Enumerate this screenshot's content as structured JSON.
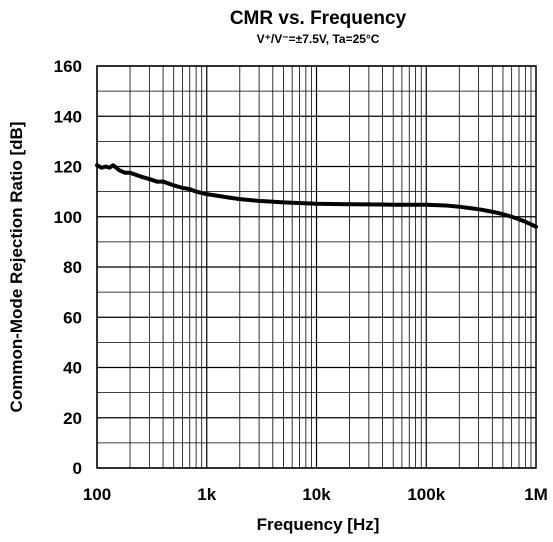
{
  "chart_data": {
    "type": "line",
    "title": "CMR vs. Frequency",
    "subtitle": "V⁺/V⁻=±7.5V, Ta=25°C",
    "xlabel": "Frequency [Hz]",
    "ylabel": "Common-Mode Rejection Ratio [dB]",
    "xscale": "log",
    "xlim": [
      100,
      1000000
    ],
    "ylim": [
      0,
      160
    ],
    "x_ticks": [
      100,
      1000,
      10000,
      100000,
      1000000
    ],
    "x_tick_labels": [
      "100",
      "1k",
      "10k",
      "100k",
      "1M"
    ],
    "y_ticks": [
      0,
      20,
      40,
      60,
      80,
      100,
      120,
      140,
      160
    ],
    "y_tick_labels": [
      "0",
      "20",
      "40",
      "60",
      "80",
      "100",
      "120",
      "140",
      "160"
    ],
    "grid": true,
    "line_color": "#000000",
    "series": [
      {
        "x": [
          100,
          110,
          120,
          130,
          140,
          150,
          160,
          180,
          200,
          250,
          300,
          350,
          400,
          500,
          600,
          700,
          800,
          1000,
          1500,
          2000,
          3000,
          5000,
          10000,
          20000,
          50000,
          100000,
          150000,
          200000,
          300000,
          400000,
          500000,
          600000,
          700000,
          800000,
          900000,
          1000000
        ],
        "y": [
          120.5,
          119.5,
          120.0,
          119.5,
          120.5,
          119.5,
          118.5,
          117.5,
          117.5,
          116.0,
          115.0,
          114.0,
          114.0,
          112.5,
          111.5,
          111.0,
          110.0,
          109.0,
          107.8,
          107.0,
          106.3,
          105.7,
          105.2,
          105.0,
          104.8,
          104.8,
          104.5,
          104.0,
          103.0,
          102.0,
          101.0,
          100.0,
          99.0,
          98.0,
          97.0,
          96.0
        ]
      }
    ]
  }
}
